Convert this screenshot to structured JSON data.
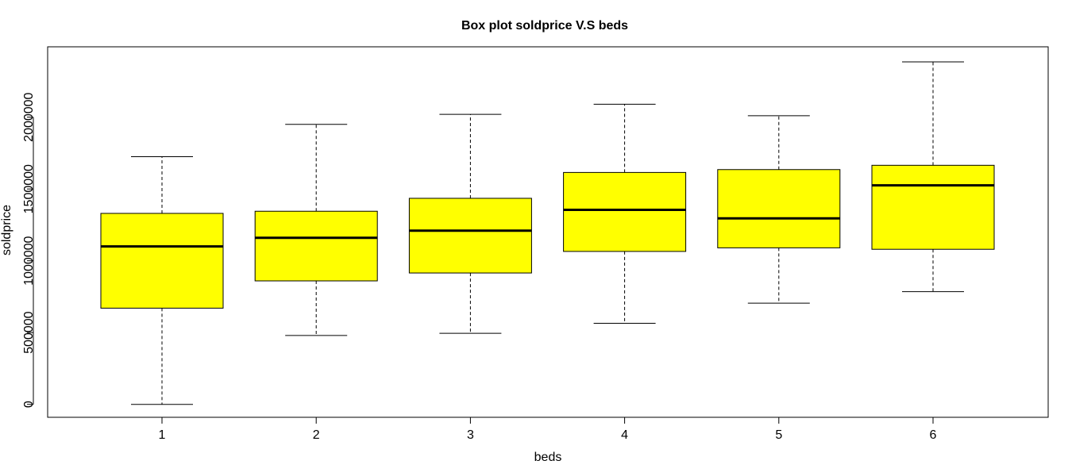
{
  "chart_data": {
    "type": "box",
    "title": "Box plot soldprice V.S beds",
    "xlabel": "beds",
    "ylabel": "soldprice",
    "categories": [
      "1",
      "2",
      "3",
      "4",
      "5",
      "6"
    ],
    "boxes": [
      {
        "category": "1",
        "whisker_low": 0,
        "q1": 670000,
        "median": 1100000,
        "q3": 1330000,
        "whisker_high": 1725000
      },
      {
        "category": "2",
        "whisker_low": 480000,
        "q1": 860000,
        "median": 1160000,
        "q3": 1345000,
        "whisker_high": 1950000
      },
      {
        "category": "3",
        "whisker_low": 495000,
        "q1": 915000,
        "median": 1210000,
        "q3": 1435000,
        "whisker_high": 2020000
      },
      {
        "category": "4",
        "whisker_low": 565000,
        "q1": 1065000,
        "median": 1355000,
        "q3": 1615000,
        "whisker_high": 2090000
      },
      {
        "category": "5",
        "whisker_low": 705000,
        "q1": 1090000,
        "median": 1295000,
        "q3": 1635000,
        "whisker_high": 2010000
      },
      {
        "category": "6",
        "whisker_low": 785000,
        "q1": 1080000,
        "median": 1525000,
        "q3": 1665000,
        "whisker_high": 2385000
      }
    ],
    "yticks": [
      0,
      500000,
      1000000,
      1500000,
      2000000
    ],
    "ytick_labels": [
      "0",
      "500000",
      "1000000",
      "1500000",
      "2000000"
    ],
    "ylim": [
      -90000,
      2490000
    ],
    "box_fill": "#ffff00",
    "grid": false,
    "legend": "none"
  }
}
